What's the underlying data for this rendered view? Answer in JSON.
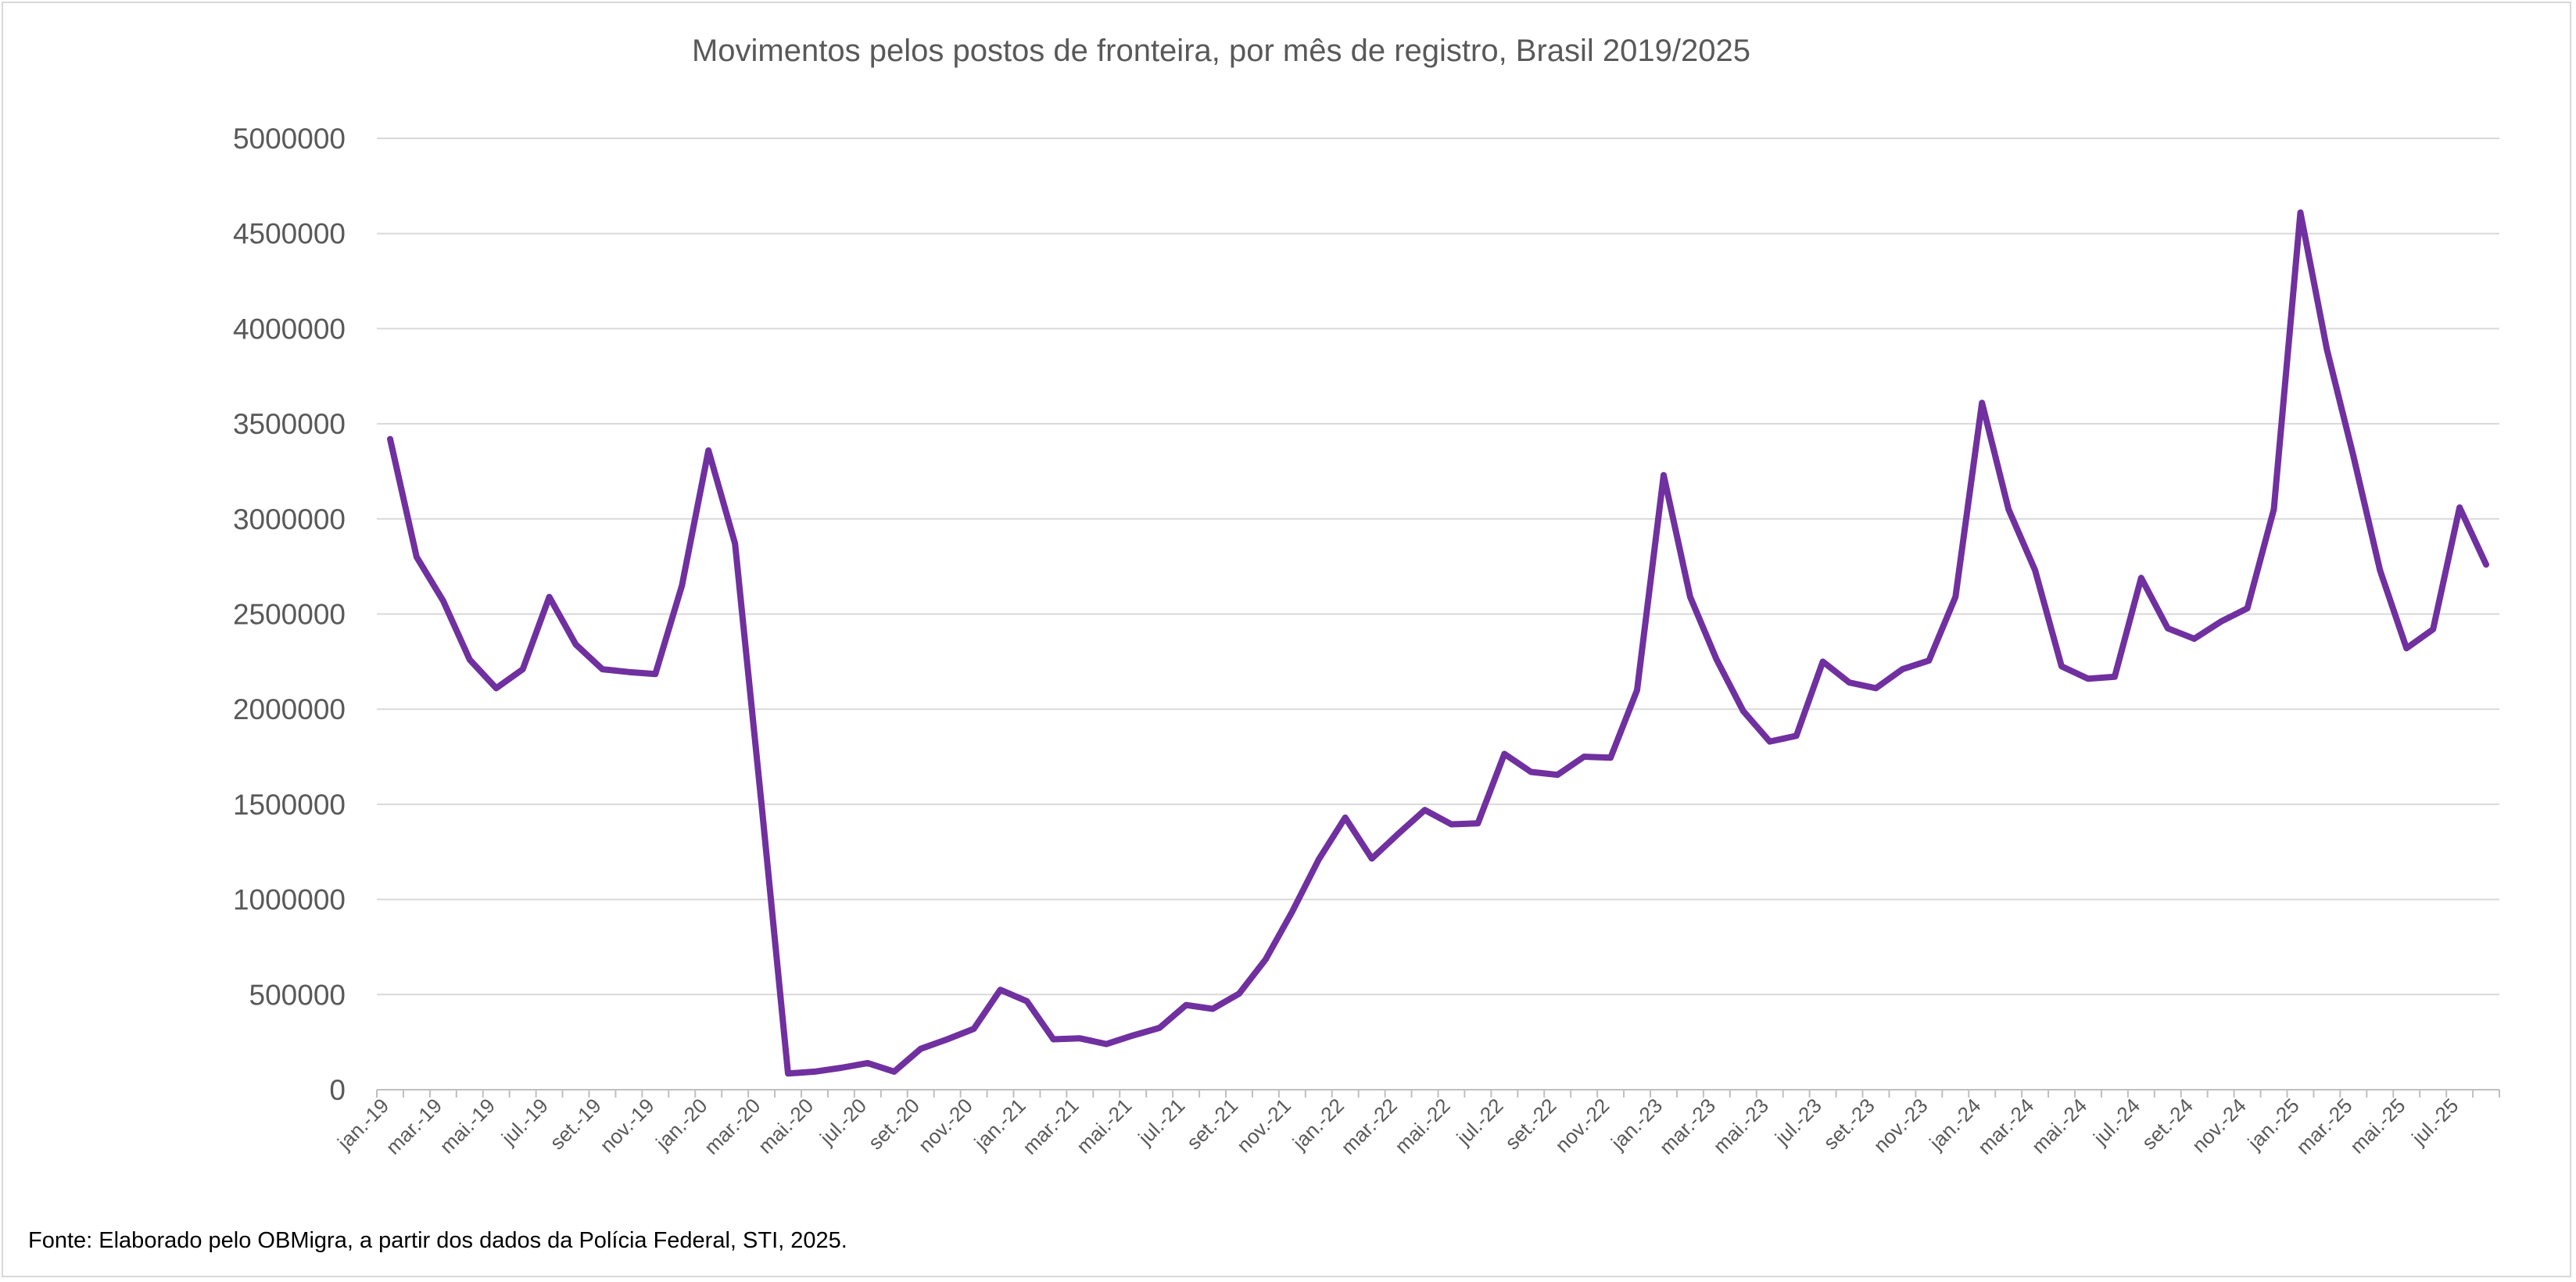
{
  "source_note": "Fonte: Elaborado pelo OBMigra, a partir dos dados da Polícia Federal, STI, 2025.",
  "chart_data": {
    "type": "line",
    "title": "Movimentos pelos postos de fronteira, por mês de registro, Brasil 2019/2025",
    "xlabel": "",
    "ylabel": "",
    "ylim": [
      0,
      5000000
    ],
    "yticks": [
      "0",
      "500000",
      "1000000",
      "1500000",
      "2000000",
      "2500000",
      "3000000",
      "3500000",
      "4000000",
      "4500000",
      "5000000"
    ],
    "grid": true,
    "legend": "none",
    "line_color": "#7030A0",
    "grid_color": "#d9d9d9",
    "x": [
      "jan.-19",
      "fev.-19",
      "mar.-19",
      "abr.-19",
      "mai.-19",
      "jun.-19",
      "jul.-19",
      "ago.-19",
      "set.-19",
      "out.-19",
      "nov.-19",
      "dez.-19",
      "jan.-20",
      "fev.-20",
      "mar.-20",
      "abr.-20",
      "mai.-20",
      "jun.-20",
      "jul.-20",
      "ago.-20",
      "set.-20",
      "out.-20",
      "nov.-20",
      "dez.-20",
      "jan.-21",
      "fev.-21",
      "mar.-21",
      "abr.-21",
      "mai.-21",
      "jun.-21",
      "jul.-21",
      "ago.-21",
      "set.-21",
      "out.-21",
      "nov.-21",
      "dez.-21",
      "jan.-22",
      "fev.-22",
      "mar.-22",
      "abr.-22",
      "mai.-22",
      "jun.-22",
      "jul.-22",
      "ago.-22",
      "set.-22",
      "out.-22",
      "nov.-22",
      "dez.-22",
      "jan.-23",
      "fev.-23",
      "mar.-23",
      "abr.-23",
      "mai.-23",
      "jun.-23",
      "jul.-23",
      "ago.-23",
      "set.-23",
      "out.-23",
      "nov.-23",
      "dez.-23",
      "jan.-24",
      "fev.-24",
      "mar.-24",
      "abr.-24",
      "mai.-24",
      "jun.-24",
      "jul.-24",
      "ago.-24",
      "set.-24",
      "out.-24",
      "nov.-24",
      "dez.-24",
      "jan.-25",
      "fev.-25",
      "mar.-25",
      "abr.-25",
      "mai.-25",
      "jun.-25",
      "jul.-25",
      "ago.-25"
    ],
    "xtick_labels": [
      "jan.-19",
      "mar.-19",
      "mai.-19",
      "jul.-19",
      "set.-19",
      "nov.-19",
      "jan.-20",
      "mar.-20",
      "mai.-20",
      "jul.-20",
      "set.-20",
      "nov.-20",
      "jan.-21",
      "mar.-21",
      "mai.-21",
      "jul.-21",
      "set.-21",
      "nov.-21",
      "jan.-22",
      "mar.-22",
      "mai.-22",
      "jul.-22",
      "set.-22",
      "nov.-22",
      "jan.-23",
      "mar.-23",
      "mai.-23",
      "jul.-23",
      "set.-23",
      "nov.-23",
      "jan.-24",
      "mar.-24",
      "mai.-24",
      "jul.-24",
      "set.-24",
      "nov.-24",
      "jan.-25",
      "mar.-25",
      "mai.-25",
      "jul.-25"
    ],
    "series": [
      {
        "values": [
          3420000,
          2800000,
          2570000,
          2260000,
          2110000,
          2210000,
          2590000,
          2340000,
          2210000,
          2195000,
          2185000,
          2650000,
          3360000,
          2870000,
          1500000,
          85000,
          95000,
          115000,
          140000,
          95000,
          215000,
          265000,
          320000,
          525000,
          465000,
          265000,
          270000,
          240000,
          285000,
          325000,
          445000,
          425000,
          505000,
          685000,
          935000,
          1210000,
          1430000,
          1215000,
          1345000,
          1470000,
          1395000,
          1400000,
          1765000,
          1670000,
          1655000,
          1750000,
          1745000,
          2100000,
          3230000,
          2590000,
          2260000,
          1990000,
          1830000,
          1860000,
          2250000,
          2140000,
          2110000,
          2210000,
          2255000,
          2590000,
          3610000,
          3050000,
          2730000,
          2225000,
          2160000,
          2170000,
          2690000,
          2425000,
          2370000,
          2460000,
          2530000,
          3050000,
          4610000,
          3890000,
          3330000,
          2730000,
          2320000,
          2420000,
          3060000,
          2760000
        ]
      }
    ]
  }
}
